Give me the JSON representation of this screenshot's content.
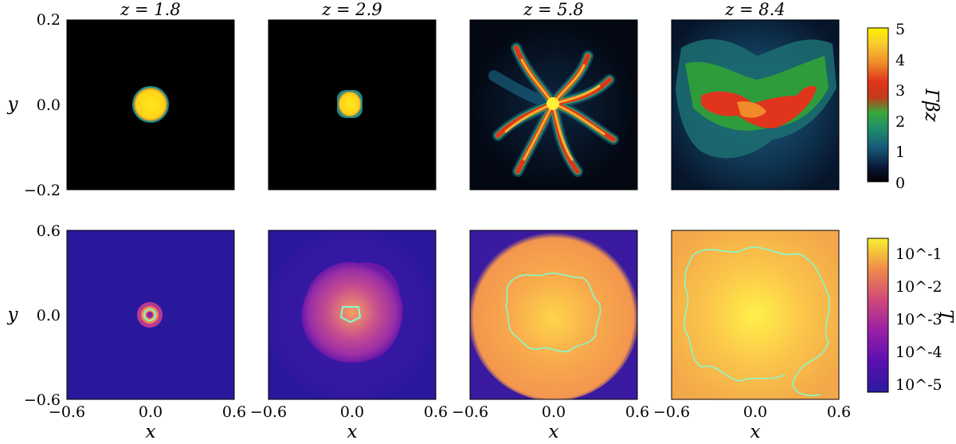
{
  "figure": {
    "colorbars": [
      {
        "id": "top",
        "label": "Γβz",
        "ticks": [
          "0",
          "1",
          "2",
          "3",
          "4",
          "5"
        ],
        "colormap": "gnuplot2-like"
      },
      {
        "id": "bottom",
        "label": "T",
        "ticks": [
          "10^-1",
          "10^-2",
          "10^-3",
          "10^-4",
          "10^-5"
        ],
        "colormap": "plasma-like",
        "contour_color": "#7fffd4"
      }
    ]
  },
  "chart_data": [
    {
      "type": "heatmap",
      "title": "z = 1.8",
      "xlabel": "",
      "ylabel": "y",
      "xlim": [
        -0.2,
        0.2
      ],
      "ylim": [
        -0.2,
        0.2
      ],
      "yticks": [
        "0.2",
        "0.0",
        "−0.2"
      ],
      "xticks": [],
      "colorbar_label": "Γβz"
    },
    {
      "type": "heatmap",
      "title": "z = 2.9",
      "xlabel": "",
      "ylabel": "",
      "xlim": [
        -0.2,
        0.2
      ],
      "ylim": [
        -0.2,
        0.2
      ],
      "xticks": [],
      "yticks": []
    },
    {
      "type": "heatmap",
      "title": "z = 5.8",
      "xlabel": "",
      "ylabel": "",
      "xlim": [
        -0.2,
        0.2
      ],
      "ylim": [
        -0.2,
        0.2
      ],
      "xticks": [],
      "yticks": []
    },
    {
      "type": "heatmap",
      "title": "z = 8.4",
      "xlabel": "",
      "ylabel": "",
      "xlim": [
        -0.2,
        0.2
      ],
      "ylim": [
        -0.2,
        0.2
      ],
      "xticks": [],
      "yticks": []
    },
    {
      "type": "heatmap",
      "title": "",
      "xlabel": "x",
      "ylabel": "y",
      "xlim": [
        -0.6,
        0.6
      ],
      "ylim": [
        -0.6,
        0.6
      ],
      "yticks": [
        "0.6",
        "0.0",
        "−0.6"
      ],
      "xticks": [
        "−0.6",
        "0.0",
        "0.6"
      ],
      "colorbar_label": "T"
    },
    {
      "type": "heatmap",
      "title": "",
      "xlabel": "x",
      "ylabel": "",
      "xlim": [
        -0.6,
        0.6
      ],
      "ylim": [
        -0.6,
        0.6
      ],
      "xticks": [
        "−0.6",
        "0.0",
        "0.6"
      ],
      "yticks": []
    },
    {
      "type": "heatmap",
      "title": "",
      "xlabel": "x",
      "ylabel": "",
      "xlim": [
        -0.6,
        0.6
      ],
      "ylim": [
        -0.6,
        0.6
      ],
      "xticks": [
        "−0.6",
        "0.0",
        "0.6"
      ],
      "yticks": []
    },
    {
      "type": "heatmap",
      "title": "",
      "xlabel": "x",
      "ylabel": "",
      "xlim": [
        -0.6,
        0.6
      ],
      "ylim": [
        -0.6,
        0.6
      ],
      "xticks": [
        "−0.6",
        "0.0",
        "0.6"
      ],
      "yticks": []
    }
  ]
}
